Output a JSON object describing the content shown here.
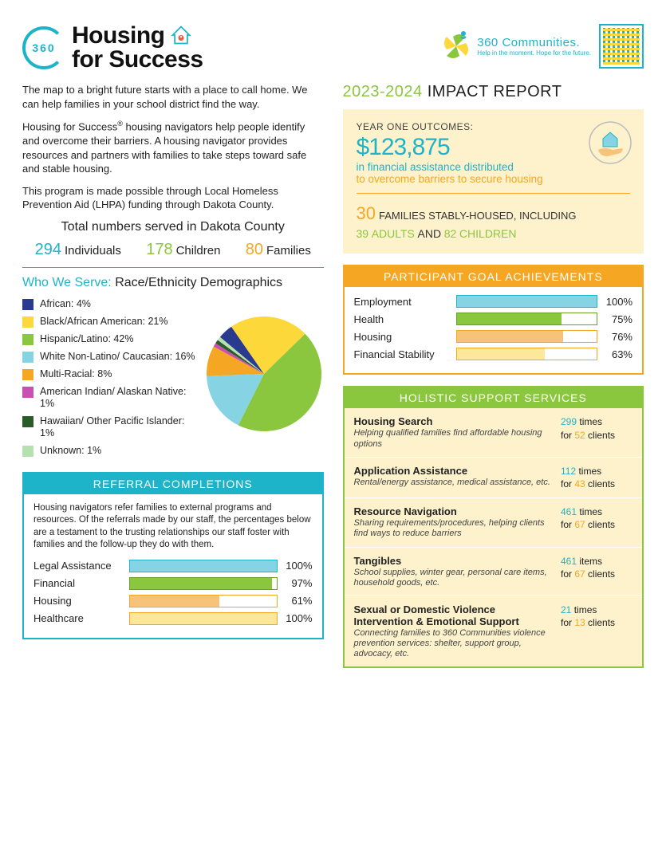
{
  "header": {
    "logo_num": "360",
    "title1": "Housing",
    "title2": "for Success",
    "brand_name": "360 Communities.",
    "brand_tag": "Help in the moment. Hope for the future."
  },
  "intro": {
    "p1": "The map to a bright future starts with a place to call home. We can help families in your school district find the way.",
    "p2a": "Housing for Success",
    "p2b": " housing navigators help people identify and overcome their barriers. A housing navigator provides resources and partners with families to take steps toward safe and stable housing.",
    "p3": "This program is made possible through Local Homeless Prevention Aid (LHPA) funding through Dakota County."
  },
  "served": {
    "title": "Total numbers served in Dakota County",
    "items": [
      {
        "num": "294",
        "label": "Individuals",
        "color": "#1db4c9"
      },
      {
        "num": "178",
        "label": "Children",
        "color": "#8bc63f"
      },
      {
        "num": "80",
        "label": "Families",
        "color": "#f5a623"
      }
    ]
  },
  "demographics": {
    "title_pre": "Who We Serve: ",
    "title": "Race/Ethnicity Demographics",
    "items": [
      {
        "label": "African:",
        "pct": "4%",
        "color": "#2a3b8f"
      },
      {
        "label": "Black/African American:",
        "pct": "21%",
        "color": "#fdd83a"
      },
      {
        "label": "Hispanic/Latino:",
        "pct": "42%",
        "color": "#8bc63f"
      },
      {
        "label": "White Non-Latino/ Caucasian:",
        "pct": "16%",
        "color": "#86d4e3"
      },
      {
        "label": "Multi-Racial:",
        "pct": "8%",
        "color": "#f5a623"
      },
      {
        "label": "American Indian/ Alaskan Native:",
        "pct": "1%",
        "color": "#c94fb3"
      },
      {
        "label": "Hawaiian/ Other Pacific Islander:",
        "pct": "1%",
        "color": "#2a5c2a"
      },
      {
        "label": "Unknown:",
        "pct": "1%",
        "color": "#b7e0b0"
      }
    ],
    "pie_values": [
      4,
      21,
      42,
      16,
      8,
      1,
      1,
      1
    ],
    "pie_colors": [
      "#2a3b8f",
      "#fdd83a",
      "#8bc63f",
      "#86d4e3",
      "#f5a623",
      "#c94fb3",
      "#2a5c2a",
      "#b7e0b0"
    ],
    "pie_start_angle": -140
  },
  "referrals": {
    "title": "REFERRAL COMPLETIONS",
    "desc": "Housing navigators refer families to external programs and resources. Of the referrals made by our staff, the percentages below are a testament to the trusting relationships our staff foster with families and the follow-up they do with them.",
    "bars": [
      {
        "label": "Legal Assistance",
        "pct": 100,
        "fill": "#86d4e3",
        "border": "#1db4c9"
      },
      {
        "label": "Financial",
        "pct": 97,
        "fill": "#8bc63f",
        "border": "#6aa02c"
      },
      {
        "label": "Housing",
        "pct": 61,
        "fill": "#f7c37a",
        "border": "#f5a623"
      },
      {
        "label": "Healthcare",
        "pct": 100,
        "fill": "#fde79a",
        "border": "#f5a623"
      }
    ]
  },
  "report": {
    "year": "2023-2024",
    "title": "IMPACT REPORT"
  },
  "outcomes": {
    "label": "YEAR ONE OUTCOMES:",
    "amount": "$123,875",
    "line1": "in financial assistance distributed",
    "line2": "to overcome barriers to secure housing",
    "fam_num": "30",
    "fam_text": "FAMILIES STABLY-HOUSED, INCLUDING",
    "adults_num": "39",
    "adults_label": "ADULTS",
    "and": "AND",
    "children_num": "82",
    "children_label": "CHILDREN"
  },
  "goals": {
    "title": "PARTICIPANT GOAL ACHIEVEMENTS",
    "bars": [
      {
        "label": "Employment",
        "pct": 100,
        "fill": "#86d4e3",
        "border": "#1db4c9"
      },
      {
        "label": "Health",
        "pct": 75,
        "fill": "#8bc63f",
        "border": "#6aa02c"
      },
      {
        "label": "Housing",
        "pct": 76,
        "fill": "#f7c37a",
        "border": "#f5a623"
      },
      {
        "label": "Financial Stability",
        "pct": 63,
        "fill": "#fde79a",
        "border": "#f5a623"
      }
    ]
  },
  "services": {
    "title": "HOLISTIC SUPPORT SERVICES",
    "items": [
      {
        "name": "Housing Search",
        "desc": "Helping qualified families find affordable housing options",
        "n1": "299",
        "u1": "times",
        "n2": "52",
        "u2": "clients"
      },
      {
        "name": "Application Assistance",
        "desc": "Rental/energy assistance, medical assistance, etc.",
        "n1": "112",
        "u1": "times",
        "n2": "43",
        "u2": "clients"
      },
      {
        "name": "Resource Navigation",
        "desc": "Sharing requirements/procedures, helping clients find ways to reduce barriers",
        "n1": "461",
        "u1": "times",
        "n2": "67",
        "u2": "clients"
      },
      {
        "name": "Tangibles",
        "desc": "School supplies, winter gear, personal care items, household goods, etc.",
        "n1": "461",
        "u1": "items",
        "n2": "67",
        "u2": "clients"
      },
      {
        "name": "Sexual or Domestic Violence Intervention & Emotional Support",
        "desc": "Connecting families to 360 Communities violence prevention services: shelter, support group, advocacy, etc.",
        "n1": "21",
        "u1": "times",
        "n2": "13",
        "u2": "clients"
      }
    ]
  }
}
